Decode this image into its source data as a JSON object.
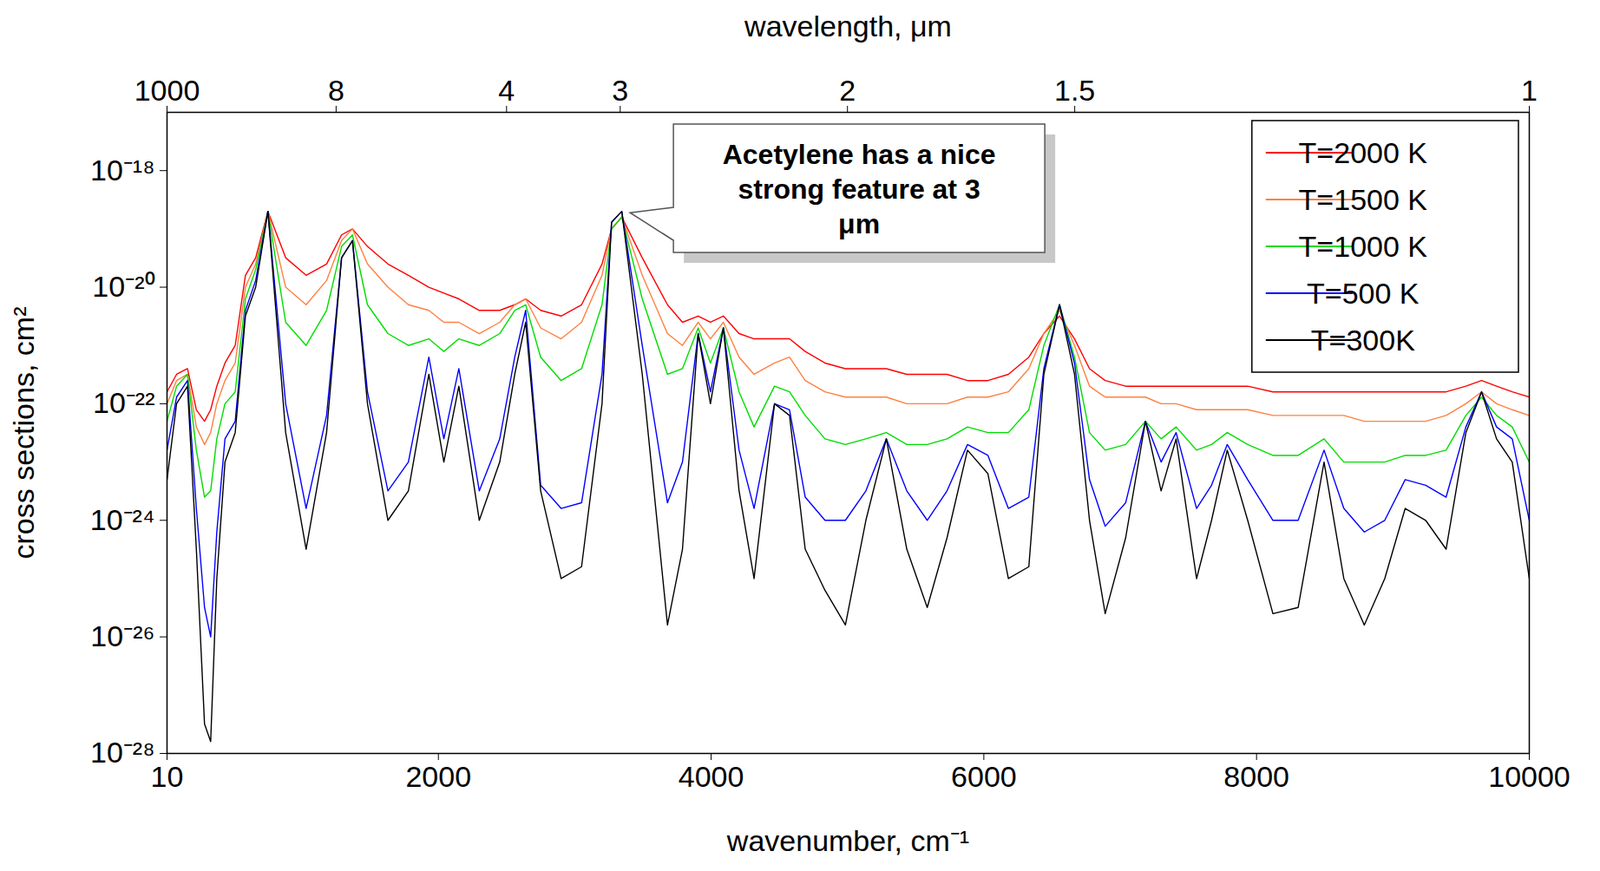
{
  "chart_data": {
    "type": "line",
    "x_label": "wavenumber, cm⁻¹",
    "y_label": "cross sections, cm²",
    "x2_label": "wavelength, μm",
    "annotations": [
      {
        "text": "Acetylene has a nice strong feature at 3 μm",
        "x": 3345
      }
    ],
    "log": "y",
    "grid": false,
    "legend": "upper right",
    "xlim": [
      10,
      10000
    ],
    "xticks": [
      10,
      2000,
      4000,
      6000,
      8000,
      10000
    ],
    "x2ticks": [
      {
        "value": 10,
        "label": "1000"
      },
      {
        "value": 1250,
        "label": "8"
      },
      {
        "value": 2500,
        "label": "4"
      },
      {
        "value": 3333.33,
        "label": "3"
      },
      {
        "value": 5000,
        "label": "2"
      },
      {
        "value": 6666.67,
        "label": "1.5"
      },
      {
        "value": 10000,
        "label": "1"
      }
    ],
    "ylim": [
      1e-28,
      1e-17
    ],
    "yticks": [
      {
        "value": 1e-28,
        "label": "10⁻²⁸"
      },
      {
        "value": 1e-26,
        "label": "10⁻²⁶"
      },
      {
        "value": 1e-24,
        "label": "10⁻²⁴"
      },
      {
        "value": 1e-22,
        "label": "10⁻²²"
      },
      {
        "value": 1e-20,
        "label": "10⁻²⁰"
      },
      {
        "value": 1e-18,
        "label": "10⁻¹⁸"
      }
    ],
    "x": [
      10,
      80,
      160,
      225,
      285,
      330,
      375,
      435,
      510,
      585,
      660,
      750,
      880,
      1030,
      1180,
      1290,
      1370,
      1480,
      1630,
      1780,
      1930,
      2040,
      2150,
      2300,
      2450,
      2560,
      2640,
      2750,
      2900,
      3050,
      3200,
      3270,
      3345,
      3495,
      3680,
      3790,
      3905,
      3995,
      4090,
      4205,
      4315,
      4465,
      4575,
      4690,
      4835,
      4985,
      5135,
      5285,
      5435,
      5585,
      5730,
      5880,
      6030,
      6180,
      6330,
      6440,
      6555,
      6665,
      6775,
      6890,
      7040,
      7185,
      7300,
      7410,
      7560,
      7670,
      7785,
      7935,
      8120,
      8305,
      8495,
      8640,
      8790,
      8940,
      9090,
      9240,
      9390,
      9535,
      9650,
      9760,
      9875,
      10000
    ],
    "series": [
      {
        "name": "T=2000 K",
        "color": "#ff0000",
        "values": [
          1.6e-22,
          3.2e-22,
          4e-22,
          7.9e-23,
          5e-23,
          7.9e-23,
          2e-22,
          5e-22,
          1e-21,
          1.6e-20,
          3.2e-20,
          2e-19,
          3.2e-20,
          1.6e-20,
          2.5e-20,
          7.9e-20,
          1e-19,
          5e-20,
          2.5e-20,
          1.6e-20,
          1e-20,
          7.9e-21,
          6.3e-21,
          4e-21,
          4e-21,
          5e-21,
          6.3e-21,
          4e-21,
          3.2e-21,
          5e-21,
          2.5e-20,
          1e-19,
          1.6e-19,
          3.2e-20,
          5e-21,
          2.5e-21,
          3.2e-21,
          2.5e-21,
          3.2e-21,
          1.6e-21,
          1.3e-21,
          1.3e-21,
          1.3e-21,
          7.9e-22,
          5e-22,
          4e-22,
          4e-22,
          4e-22,
          3.2e-22,
          3.2e-22,
          3.2e-22,
          2.5e-22,
          2.5e-22,
          3.2e-22,
          6.3e-22,
          1.6e-21,
          3.2e-21,
          1.3e-21,
          4e-22,
          2.5e-22,
          2e-22,
          2e-22,
          2e-22,
          2e-22,
          2e-22,
          2e-22,
          2e-22,
          2e-22,
          1.6e-22,
          1.6e-22,
          1.6e-22,
          1.6e-22,
          1.6e-22,
          1.6e-22,
          1.6e-22,
          1.6e-22,
          1.6e-22,
          2e-22,
          2.5e-22,
          2e-22,
          1.6e-22,
          1.3e-22
        ]
      },
      {
        "name": "T=1500 K",
        "color": "#ff8040",
        "values": [
          1e-22,
          2.5e-22,
          3.2e-22,
          4e-23,
          2e-23,
          3.2e-23,
          1e-22,
          2.5e-22,
          5e-22,
          1e-20,
          2.5e-20,
          2e-19,
          1e-20,
          5e-21,
          1.3e-20,
          6.3e-20,
          1e-19,
          2.5e-20,
          1e-20,
          5e-21,
          4e-21,
          2.5e-21,
          2.5e-21,
          1.6e-21,
          2.5e-21,
          5e-21,
          6.3e-21,
          2e-21,
          1.3e-21,
          2.5e-21,
          1.6e-20,
          1e-19,
          1.6e-19,
          1.6e-20,
          1.6e-21,
          1e-21,
          2.5e-21,
          1.3e-21,
          2.5e-21,
          6.3e-22,
          3.2e-22,
          5e-22,
          6.3e-22,
          2.5e-22,
          1.6e-22,
          1.3e-22,
          1.3e-22,
          1.3e-22,
          1e-22,
          1e-22,
          1e-22,
          1.3e-22,
          1.3e-22,
          1.6e-22,
          4e-22,
          1.6e-21,
          4e-21,
          1e-21,
          2e-22,
          1.3e-22,
          1.3e-22,
          1.3e-22,
          1e-22,
          1e-22,
          7.9e-23,
          7.9e-23,
          7.9e-23,
          7.9e-23,
          6.3e-23,
          6.3e-23,
          6.3e-23,
          6.3e-23,
          5e-23,
          5e-23,
          5e-23,
          5e-23,
          6.3e-23,
          1e-22,
          1.6e-22,
          1e-22,
          7.9e-23,
          6.3e-23
        ]
      },
      {
        "name": "T=1000 K",
        "color": "#00dd00",
        "values": [
          5e-23,
          2e-22,
          3.2e-22,
          1.6e-23,
          2.5e-24,
          3.2e-24,
          2.5e-23,
          1e-22,
          1.6e-22,
          6.3e-21,
          2e-20,
          2e-19,
          2.5e-21,
          1e-21,
          4e-21,
          5e-20,
          7.9e-20,
          5e-21,
          1.6e-21,
          1e-21,
          1.3e-21,
          7.9e-22,
          1.3e-21,
          1e-21,
          1.6e-21,
          4e-21,
          5e-21,
          6.3e-22,
          2.5e-22,
          4e-22,
          5e-21,
          1e-19,
          1.6e-19,
          6.3e-21,
          3.2e-22,
          4e-22,
          2e-21,
          5e-22,
          2e-21,
          1.6e-22,
          4e-23,
          2e-22,
          1.6e-22,
          6.3e-23,
          2.5e-23,
          2e-23,
          2.5e-23,
          3.2e-23,
          2e-23,
          2e-23,
          2.5e-23,
          4e-23,
          3.2e-23,
          3.2e-23,
          7.9e-23,
          1e-21,
          5e-21,
          6.3e-22,
          3.2e-23,
          1.6e-23,
          2e-23,
          5e-23,
          2.5e-23,
          4e-23,
          1.6e-23,
          2e-23,
          3.2e-23,
          2e-23,
          1.3e-23,
          1.3e-23,
          2.5e-23,
          1e-23,
          1e-23,
          1e-23,
          1.3e-23,
          1.3e-23,
          1.6e-23,
          6.3e-23,
          1.3e-22,
          6.3e-23,
          4e-23,
          1e-23
        ]
      },
      {
        "name": "T=500 K",
        "color": "#0000ff",
        "values": [
          1.6e-23,
          1.3e-22,
          2.5e-22,
          1.6e-24,
          3.2e-26,
          1e-26,
          6.3e-25,
          2.5e-23,
          5e-23,
          4e-21,
          1.3e-20,
          2e-19,
          1e-22,
          1.6e-24,
          6.3e-23,
          3.2e-20,
          6.3e-20,
          1.6e-22,
          3.2e-24,
          1e-23,
          6.3e-22,
          2.5e-23,
          4e-22,
          3.2e-24,
          2.5e-23,
          6.3e-22,
          4e-21,
          4e-24,
          1.6e-24,
          2e-24,
          3.2e-22,
          1.3e-19,
          2e-19,
          1e-21,
          2e-24,
          1e-23,
          1.6e-21,
          1.6e-22,
          2e-21,
          1.6e-23,
          1.6e-24,
          1e-22,
          7.9e-23,
          2.5e-24,
          1e-24,
          1e-24,
          3.2e-24,
          2.5e-23,
          3.2e-24,
          1e-24,
          3.2e-24,
          2e-23,
          1.3e-23,
          1.6e-24,
          2.5e-24,
          4e-22,
          5e-21,
          5e-22,
          5e-24,
          7.9e-25,
          2e-24,
          5e-23,
          1e-23,
          3.2e-23,
          1.6e-24,
          4e-24,
          2e-23,
          5e-24,
          1e-24,
          1e-24,
          1.6e-23,
          1.6e-24,
          6.3e-25,
          1e-24,
          5e-24,
          4e-24,
          2.5e-24,
          4e-23,
          1.6e-22,
          4e-23,
          2.5e-23,
          1e-24
        ]
      },
      {
        "name": "T=300K",
        "color": "#000000",
        "values": [
          5e-24,
          1e-22,
          2e-22,
          3.2e-25,
          3.2e-28,
          1.6e-28,
          1e-25,
          1e-23,
          3.2e-23,
          3.2e-21,
          1e-20,
          2e-19,
          3.2e-23,
          3.2e-25,
          3.2e-23,
          3.2e-20,
          6.3e-20,
          1e-22,
          1e-24,
          3.2e-24,
          3.2e-22,
          1e-23,
          2e-22,
          1e-24,
          1e-23,
          3.2e-22,
          2.5e-21,
          3.2e-24,
          1e-25,
          1.6e-25,
          1e-22,
          1.3e-19,
          2e-19,
          3.2e-22,
          1.6e-26,
          3.2e-25,
          1.6e-21,
          1e-22,
          2e-21,
          3.2e-24,
          1e-25,
          1e-22,
          6.3e-23,
          3.2e-25,
          6.3e-26,
          1.6e-26,
          1e-24,
          2.5e-23,
          3.2e-25,
          3.2e-26,
          5e-25,
          1.6e-23,
          6.3e-24,
          1e-25,
          1.6e-25,
          3.2e-22,
          5e-21,
          3.2e-22,
          1e-24,
          2.5e-26,
          5e-25,
          5e-23,
          3.2e-24,
          2.5e-23,
          1e-25,
          1e-24,
          1.6e-23,
          1e-24,
          2.5e-26,
          3.2e-26,
          1e-23,
          1e-25,
          1.6e-26,
          1e-25,
          1.6e-24,
          1e-24,
          3.2e-25,
          3.2e-23,
          1.6e-22,
          2.5e-23,
          1e-23,
          1e-25
        ]
      }
    ]
  }
}
